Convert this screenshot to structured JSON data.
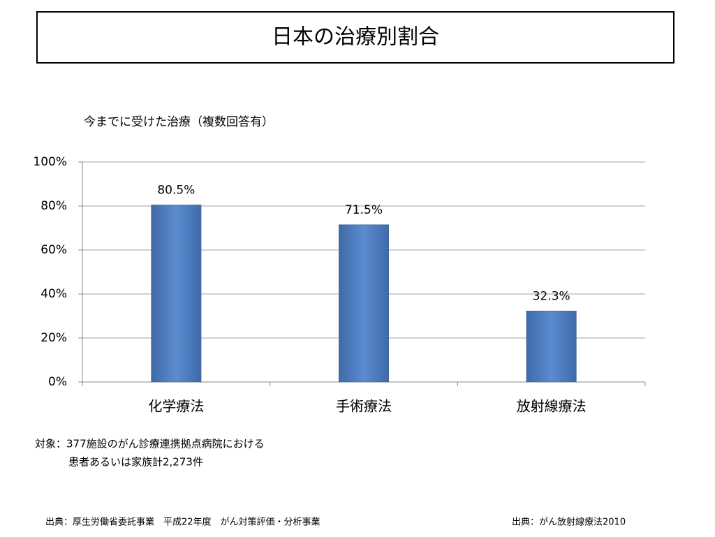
{
  "chart_data": {
    "type": "bar",
    "title": "日本の治療別割合",
    "subtitle": "今までに受けた治療（複数回答有）",
    "categories": [
      "化学療法",
      "手術療法",
      "放射線療法"
    ],
    "values": [
      80.5,
      71.5,
      32.3
    ],
    "value_labels": [
      "80.5%",
      "71.5%",
      "32.3%"
    ],
    "color": "#4f81bd",
    "ylim": [
      0,
      100
    ],
    "yticks": [
      {
        "value": 0,
        "label": "0%"
      },
      {
        "value": 20,
        "label": "20%"
      },
      {
        "value": 40,
        "label": "40%"
      },
      {
        "value": 60,
        "label": "60%"
      },
      {
        "value": 80,
        "label": "80%"
      },
      {
        "value": 100,
        "label": "100%"
      }
    ],
    "grid": true,
    "notes": [
      "対象：377施設のがん診療連携拠点病院における",
      "患者あるいは家族計2,273件"
    ],
    "sources": [
      "出典：厚生労働省委託事業　平成22年度　がん対策評価・分析事業",
      "出典：がん放射線療法2010"
    ]
  }
}
